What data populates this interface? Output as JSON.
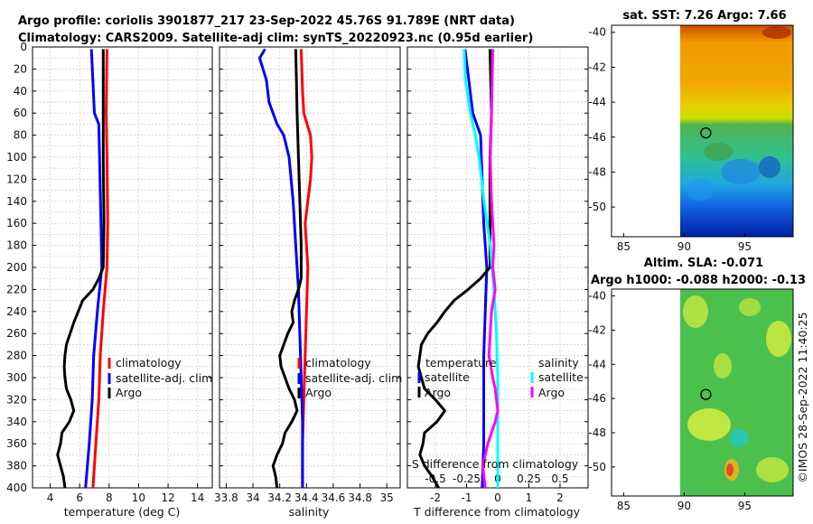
{
  "header": {
    "title_line1": "Argo profile: coriolis 3901877_217 23-Sep-2022 45.76S 91.789E (NRT data)",
    "title_line2": "Climatology: CARS2009. Satellite-adj clim: synTS_20220923.nc (0.95d earlier)"
  },
  "depth_ticks": [
    "0",
    "20",
    "40",
    "60",
    "80",
    "100",
    "120",
    "140",
    "160",
    "180",
    "200",
    "220",
    "240",
    "260",
    "280",
    "300",
    "320",
    "340",
    "360",
    "380",
    "400"
  ],
  "colors": {
    "climatology": "#ff0000",
    "satellite": "#0000ff",
    "argo": "#000000",
    "sal_sat": "#00ffff",
    "sal_argo": "#ff00ff"
  },
  "chart_data": [
    {
      "type": "line",
      "name": "temperature",
      "xlabel": "temperature (deg C)",
      "xlim": [
        2.8,
        15
      ],
      "ylim": [
        0,
        400
      ],
      "xticks": [
        "4",
        "6",
        "8",
        "10",
        "12",
        "14"
      ],
      "legend": [
        "climatology",
        "satellite-adj. clim",
        "Argo"
      ],
      "series": [
        {
          "name": "climatology",
          "color": "#ff0000",
          "depth": [
            2,
            60,
            100,
            160,
            200,
            240,
            280,
            320,
            360,
            400
          ],
          "values": [
            7.85,
            7.8,
            7.85,
            7.9,
            7.85,
            7.6,
            7.4,
            7.3,
            7.1,
            6.9
          ]
        },
        {
          "name": "satellite-adj. clim",
          "color": "#0000ff",
          "depth": [
            2,
            60,
            70,
            100,
            160,
            200,
            240,
            280,
            320,
            360,
            400
          ],
          "values": [
            6.8,
            7.0,
            7.3,
            7.35,
            7.45,
            7.5,
            7.2,
            6.95,
            6.85,
            6.65,
            6.4
          ]
        },
        {
          "name": "Argo",
          "color": "#000000",
          "depth": [
            2,
            60,
            100,
            160,
            200,
            210,
            220,
            230,
            240,
            250,
            260,
            270,
            280,
            290,
            300,
            310,
            320,
            330,
            340,
            350,
            360,
            370,
            380,
            390,
            400
          ],
          "values": [
            7.6,
            7.6,
            7.6,
            7.65,
            7.6,
            7.3,
            6.9,
            6.2,
            5.9,
            5.6,
            5.35,
            5.1,
            5.0,
            4.95,
            5.0,
            5.1,
            5.4,
            5.6,
            5.3,
            4.8,
            4.7,
            4.5,
            4.7,
            4.9,
            5.0
          ]
        }
      ]
    },
    {
      "type": "line",
      "name": "salinity",
      "xlabel": "salinity",
      "xlim": [
        33.75,
        35.1
      ],
      "ylim": [
        0,
        400
      ],
      "xticks": [
        "33.8",
        "34",
        "34.2",
        "34.4",
        "34.6",
        "34.8",
        "35"
      ],
      "legend": [
        "climatology",
        "satellite-adj. clim",
        "Argo"
      ],
      "series": [
        {
          "name": "climatology",
          "color": "#ff0000",
          "depth": [
            2,
            40,
            60,
            80,
            100,
            120,
            140,
            160,
            180,
            200,
            240,
            280,
            320,
            360,
            400
          ],
          "values": [
            34.36,
            34.37,
            34.38,
            34.43,
            34.44,
            34.43,
            34.41,
            34.39,
            34.4,
            34.41,
            34.4,
            34.39,
            34.38,
            34.37,
            34.37
          ]
        },
        {
          "name": "satellite-adj. clim",
          "color": "#0000ff",
          "depth": [
            2,
            10,
            30,
            50,
            70,
            80,
            100,
            140,
            180,
            220,
            260,
            300,
            340,
            380,
            400
          ],
          "values": [
            34.09,
            34.05,
            34.1,
            34.12,
            34.18,
            34.23,
            34.27,
            34.3,
            34.32,
            34.34,
            34.35,
            34.36,
            34.37,
            34.37,
            34.37
          ]
        },
        {
          "name": "Argo",
          "color": "#000000",
          "depth": [
            2,
            60,
            100,
            140,
            180,
            210,
            220,
            230,
            240,
            250,
            260,
            270,
            280,
            290,
            300,
            310,
            320,
            330,
            340,
            350,
            360,
            370,
            380,
            390,
            400
          ],
          "values": [
            34.32,
            34.33,
            34.34,
            34.35,
            34.36,
            34.36,
            34.34,
            34.31,
            34.29,
            34.3,
            34.26,
            34.23,
            34.2,
            34.21,
            34.24,
            34.27,
            34.31,
            34.33,
            34.29,
            34.24,
            34.22,
            34.18,
            34.15,
            34.17,
            34.18
          ]
        }
      ]
    },
    {
      "type": "line",
      "name": "difference",
      "xlabel": "T difference from climatology",
      "xlabel_top": "S difference from climatology",
      "xlim": [
        -2.9,
        2.9
      ],
      "ylim": [
        0,
        400
      ],
      "xticks": [
        "-2",
        "-1",
        "0",
        "1",
        "2"
      ],
      "xticks_top": [
        "-0.5",
        "-0.25",
        "0",
        "0.25",
        "0.5"
      ],
      "legend_temperature_title": "temperature",
      "legend_salinity_title": "salinity",
      "legend_labels": [
        "satellite",
        "Argo"
      ],
      "series": [
        {
          "name": "temperature satellite",
          "color": "#0000ff",
          "depth": [
            2,
            60,
            80,
            160,
            200,
            240,
            280,
            320,
            360,
            400
          ],
          "values": [
            -1.05,
            -0.8,
            -0.55,
            -0.45,
            -0.35,
            -0.4,
            -0.45,
            -0.45,
            -0.45,
            -0.5
          ]
        },
        {
          "name": "temperature Argo",
          "color": "#000000",
          "depth": [
            2,
            60,
            100,
            160,
            200,
            210,
            220,
            230,
            240,
            250,
            260,
            270,
            280,
            290,
            300,
            310,
            320,
            330,
            340,
            350,
            360,
            370,
            380,
            390,
            400
          ],
          "values": [
            -0.25,
            -0.2,
            -0.25,
            -0.25,
            -0.25,
            -0.55,
            -0.95,
            -1.4,
            -1.7,
            -1.95,
            -2.25,
            -2.45,
            -2.5,
            -2.55,
            -2.45,
            -2.35,
            -2.0,
            -1.7,
            -1.95,
            -2.35,
            -2.4,
            -2.5,
            -2.35,
            -2.1,
            -1.9
          ]
        },
        {
          "name": "salinity satellite",
          "color": "#00ffff",
          "depth": [
            2,
            30,
            60,
            80,
            100,
            140,
            180,
            220,
            260,
            300,
            340,
            380,
            400
          ],
          "values": [
            -0.27,
            -0.26,
            -0.22,
            -0.18,
            -0.15,
            -0.11,
            -0.06,
            -0.03,
            -0.01,
            0,
            0,
            0,
            0
          ]
        },
        {
          "name": "salinity Argo",
          "color": "#ff00ff",
          "depth": [
            2,
            60,
            100,
            140,
            180,
            200,
            220,
            240,
            260,
            280,
            300,
            310,
            320,
            330,
            340,
            350,
            360,
            370,
            380,
            390,
            400
          ],
          "values": [
            -0.04,
            -0.05,
            -0.06,
            -0.05,
            -0.03,
            -0.04,
            -0.02,
            -0.05,
            -0.06,
            -0.07,
            -0.04,
            -0.02,
            -0.01,
            0,
            -0.02,
            -0.05,
            -0.08,
            -0.1,
            -0.12,
            -0.11,
            -0.1
          ]
        }
      ]
    },
    {
      "type": "heatmap",
      "name": "sst_map",
      "title": "sat. SST: 7.26 Argo: 7.66",
      "xticks": [
        "85",
        "90",
        "95"
      ],
      "yticks": [
        "-40",
        "-42",
        "-44",
        "-46",
        "-48",
        "-50"
      ],
      "xlim": [
        84,
        99
      ],
      "ylim": [
        -51.7,
        -39.6
      ],
      "data_xlim": [
        90,
        99
      ],
      "marker": [
        91.789,
        -45.76
      ]
    },
    {
      "type": "heatmap",
      "name": "sla_map",
      "title": "Altim. SLA: -0.071",
      "subtitle": "Argo h1000: -0.088 h2000: -0.13",
      "xticks": [
        "85",
        "90",
        "95"
      ],
      "yticks": [
        "-40",
        "-42",
        "-44",
        "-46",
        "-48",
        "-50"
      ],
      "xlim": [
        84,
        99
      ],
      "ylim": [
        -51.7,
        -39.6
      ],
      "data_xlim": [
        90,
        99
      ],
      "marker": [
        91.789,
        -45.76
      ]
    }
  ],
  "watermark": "©IMOS 28-Sep-2022 11:40:25"
}
